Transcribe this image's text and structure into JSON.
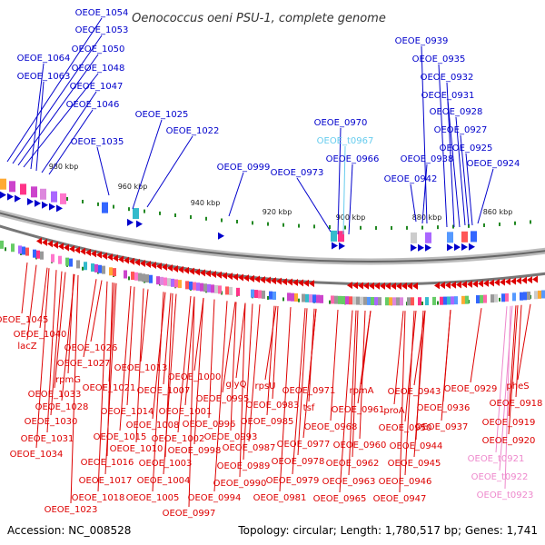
{
  "title": "Oenococcus oeni PSU-1, complete genome",
  "footer": {
    "accession": "Accession: NC_008528",
    "topology": "Topology: circular; Length: 1,780,517 bp; Genes: 1,741"
  },
  "colors": {
    "forward_gene": "#0000cc",
    "reverse_gene": "#dd0000",
    "trna": "#66ccee",
    "rrna": "#ee88cc",
    "backbone": "#888888",
    "tick": "#228822"
  },
  "scale_labels": [
    "980 kbp",
    "960 kbp",
    "940 kbp",
    "920 kbp",
    "900 kbp",
    "880 kbp",
    "860 kbp"
  ],
  "top_labels": [
    {
      "text": "OEOE_1054",
      "kind": "forward"
    },
    {
      "text": "OEOE_1053",
      "kind": "forward"
    },
    {
      "text": "OEOE_1050",
      "kind": "forward"
    },
    {
      "text": "OEOE_1048",
      "kind": "forward"
    },
    {
      "text": "OEOE_1064",
      "kind": "forward"
    },
    {
      "text": "OEOE_1063",
      "kind": "forward"
    },
    {
      "text": "OEOE_1047",
      "kind": "forward"
    },
    {
      "text": "OEOE_1046",
      "kind": "forward"
    },
    {
      "text": "OEOE_1025",
      "kind": "forward"
    },
    {
      "text": "OEOE_1022",
      "kind": "forward"
    },
    {
      "text": "OEOE_1035",
      "kind": "forward"
    },
    {
      "text": "OEOE_0999",
      "kind": "forward"
    },
    {
      "text": "OEOE_0973",
      "kind": "forward"
    },
    {
      "text": "OEOE_0970",
      "kind": "forward"
    },
    {
      "text": "OEOE_t0967",
      "kind": "trna"
    },
    {
      "text": "OEOE_0966",
      "kind": "forward"
    },
    {
      "text": "OEOE_0939",
      "kind": "forward"
    },
    {
      "text": "OEOE_0935",
      "kind": "forward"
    },
    {
      "text": "OEOE_0932",
      "kind": "forward"
    },
    {
      "text": "OEOE_0931",
      "kind": "forward"
    },
    {
      "text": "OEOE_0928",
      "kind": "forward"
    },
    {
      "text": "OEOE_0927",
      "kind": "forward"
    },
    {
      "text": "OEOE_0925",
      "kind": "forward"
    },
    {
      "text": "OEOE_0938",
      "kind": "forward"
    },
    {
      "text": "OEOE_0924",
      "kind": "forward"
    },
    {
      "text": "OEOE_0942",
      "kind": "forward"
    }
  ],
  "bottom_labels": [
    {
      "text": "OEOE_1045",
      "kind": "reverse"
    },
    {
      "text": "OEOE_1040",
      "kind": "reverse"
    },
    {
      "text": "lacZ",
      "kind": "reverse"
    },
    {
      "text": "OEOE_1026",
      "kind": "reverse"
    },
    {
      "text": "OEOE_1027",
      "kind": "reverse"
    },
    {
      "text": "rpmG",
      "kind": "reverse"
    },
    {
      "text": "OEOE_1013",
      "kind": "reverse"
    },
    {
      "text": "OEOE_1000",
      "kind": "reverse"
    },
    {
      "text": "OEOE_1033",
      "kind": "reverse"
    },
    {
      "text": "OEOE_1028",
      "kind": "reverse"
    },
    {
      "text": "OEOE_1021",
      "kind": "reverse"
    },
    {
      "text": "OEOE_1007",
      "kind": "reverse"
    },
    {
      "text": "glyQ",
      "kind": "reverse"
    },
    {
      "text": "rpsU",
      "kind": "reverse"
    },
    {
      "text": "OEOE_0995",
      "kind": "reverse"
    },
    {
      "text": "OEOE_0983",
      "kind": "reverse"
    },
    {
      "text": "OEOE_1014",
      "kind": "reverse"
    },
    {
      "text": "OEOE_1001",
      "kind": "reverse"
    },
    {
      "text": "OEOE_1030",
      "kind": "reverse"
    },
    {
      "text": "OEOE_1008",
      "kind": "reverse"
    },
    {
      "text": "OEOE_0996",
      "kind": "reverse"
    },
    {
      "text": "OEOE_0985",
      "kind": "reverse"
    },
    {
      "text": "OEOE_1031",
      "kind": "reverse"
    },
    {
      "text": "OEOE_1015",
      "kind": "reverse"
    },
    {
      "text": "OEOE_1002",
      "kind": "reverse"
    },
    {
      "text": "OEOE_0993",
      "kind": "reverse"
    },
    {
      "text": "OEOE_1010",
      "kind": "reverse"
    },
    {
      "text": "OEOE_0998",
      "kind": "reverse"
    },
    {
      "text": "OEOE_0987",
      "kind": "reverse"
    },
    {
      "text": "OEOE_1034",
      "kind": "reverse"
    },
    {
      "text": "OEOE_1016",
      "kind": "reverse"
    },
    {
      "text": "OEOE_1003",
      "kind": "reverse"
    },
    {
      "text": "OEOE_0989",
      "kind": "reverse"
    },
    {
      "text": "OEOE_1017",
      "kind": "reverse"
    },
    {
      "text": "OEOE_1004",
      "kind": "reverse"
    },
    {
      "text": "OEOE_0990",
      "kind": "reverse"
    },
    {
      "text": "OEOE_1023",
      "kind": "reverse"
    },
    {
      "text": "OEOE_1018",
      "kind": "reverse"
    },
    {
      "text": "OEOE_1005",
      "kind": "reverse"
    },
    {
      "text": "OEOE_0994",
      "kind": "reverse"
    },
    {
      "text": "OEOE_0997",
      "kind": "reverse"
    },
    {
      "text": "OEOE_0971",
      "kind": "reverse"
    },
    {
      "text": "rpmA",
      "kind": "reverse"
    },
    {
      "text": "OEOE_0943",
      "kind": "reverse"
    },
    {
      "text": "OEOE_0961",
      "kind": "reverse"
    },
    {
      "text": "tsf",
      "kind": "reverse"
    },
    {
      "text": "OEOE_0968",
      "kind": "reverse"
    },
    {
      "text": "proA",
      "kind": "reverse"
    },
    {
      "text": "OEOE_0950",
      "kind": "reverse"
    },
    {
      "text": "OEOE_0977",
      "kind": "reverse"
    },
    {
      "text": "OEOE_0960",
      "kind": "reverse"
    },
    {
      "text": "OEOE_0944",
      "kind": "reverse"
    },
    {
      "text": "OEOE_0978",
      "kind": "reverse"
    },
    {
      "text": "OEOE_0945",
      "kind": "reverse"
    },
    {
      "text": "OEOE_0979",
      "kind": "reverse"
    },
    {
      "text": "OEOE_0962",
      "kind": "reverse"
    },
    {
      "text": "OEOE_0963",
      "kind": "reverse"
    },
    {
      "text": "OEOE_0946",
      "kind": "reverse"
    },
    {
      "text": "OEOE_0981",
      "kind": "reverse"
    },
    {
      "text": "OEOE_0965",
      "kind": "reverse"
    },
    {
      "text": "OEOE_0947",
      "kind": "reverse"
    },
    {
      "text": "OEOE_0936",
      "kind": "reverse"
    },
    {
      "text": "OEOE_0937",
      "kind": "reverse"
    },
    {
      "text": "OEOE_0929",
      "kind": "reverse"
    },
    {
      "text": "pheS",
      "kind": "reverse"
    },
    {
      "text": "OEOE_0918",
      "kind": "reverse"
    },
    {
      "text": "OEOE_0919",
      "kind": "reverse"
    },
    {
      "text": "OEOE_0920",
      "kind": "reverse"
    },
    {
      "text": "OEOE_t0921",
      "kind": "rrna"
    },
    {
      "text": "OEOE_t0922",
      "kind": "rrna"
    },
    {
      "text": "OEOE_t0923",
      "kind": "rrna"
    }
  ]
}
